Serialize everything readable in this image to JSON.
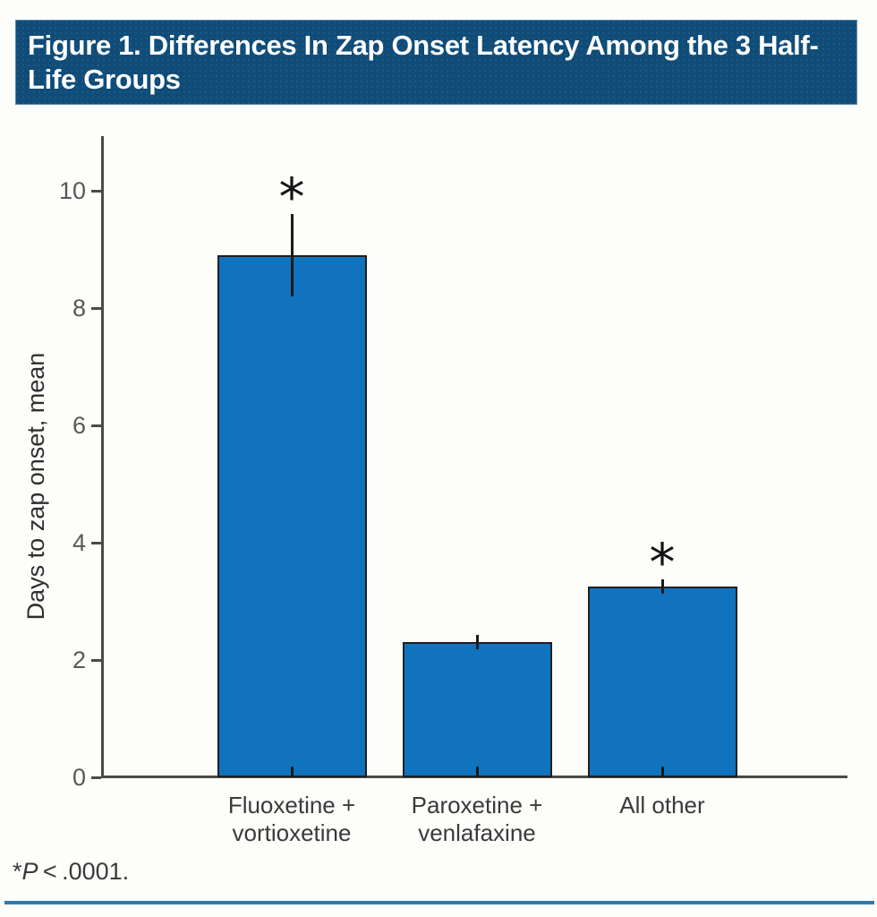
{
  "header": {
    "title": "Figure 1. Differences In Zap Onset Latency Among the 3 Half-Life Groups",
    "background_color": "#0f4c78",
    "text_color": "#ffffff"
  },
  "chart_data": {
    "type": "bar",
    "title": "Figure 1. Differences In Zap Onset Latency Among the 3 Half-Life Groups",
    "categories": [
      "Fluoxetine +\nvortioxetine",
      "Paroxetine +\nvenlafaxine",
      "All other"
    ],
    "values": [
      8.9,
      2.3,
      3.25
    ],
    "errors": [
      0.7,
      0.12,
      0.12
    ],
    "significant": [
      true,
      false,
      true
    ],
    "sig_marker": "*",
    "xlabel": "",
    "ylabel": "Days to zap onset, mean",
    "ylim": [
      0,
      11
    ],
    "yticks": [
      0,
      2,
      4,
      6,
      8,
      10
    ],
    "grid": false,
    "legend": null,
    "bar_color": "#1173be",
    "bar_border_color": "#1f1f1f",
    "axis_color": "#4a4a4a"
  },
  "footnote": {
    "marker": "*",
    "p_label": "P",
    "rest": " < .0001."
  },
  "colors": {
    "page_background": "#fdfdfa",
    "bottom_rule": "#2d7aae",
    "tick_label": "#58585a",
    "category_label": "#3a3a3c"
  }
}
